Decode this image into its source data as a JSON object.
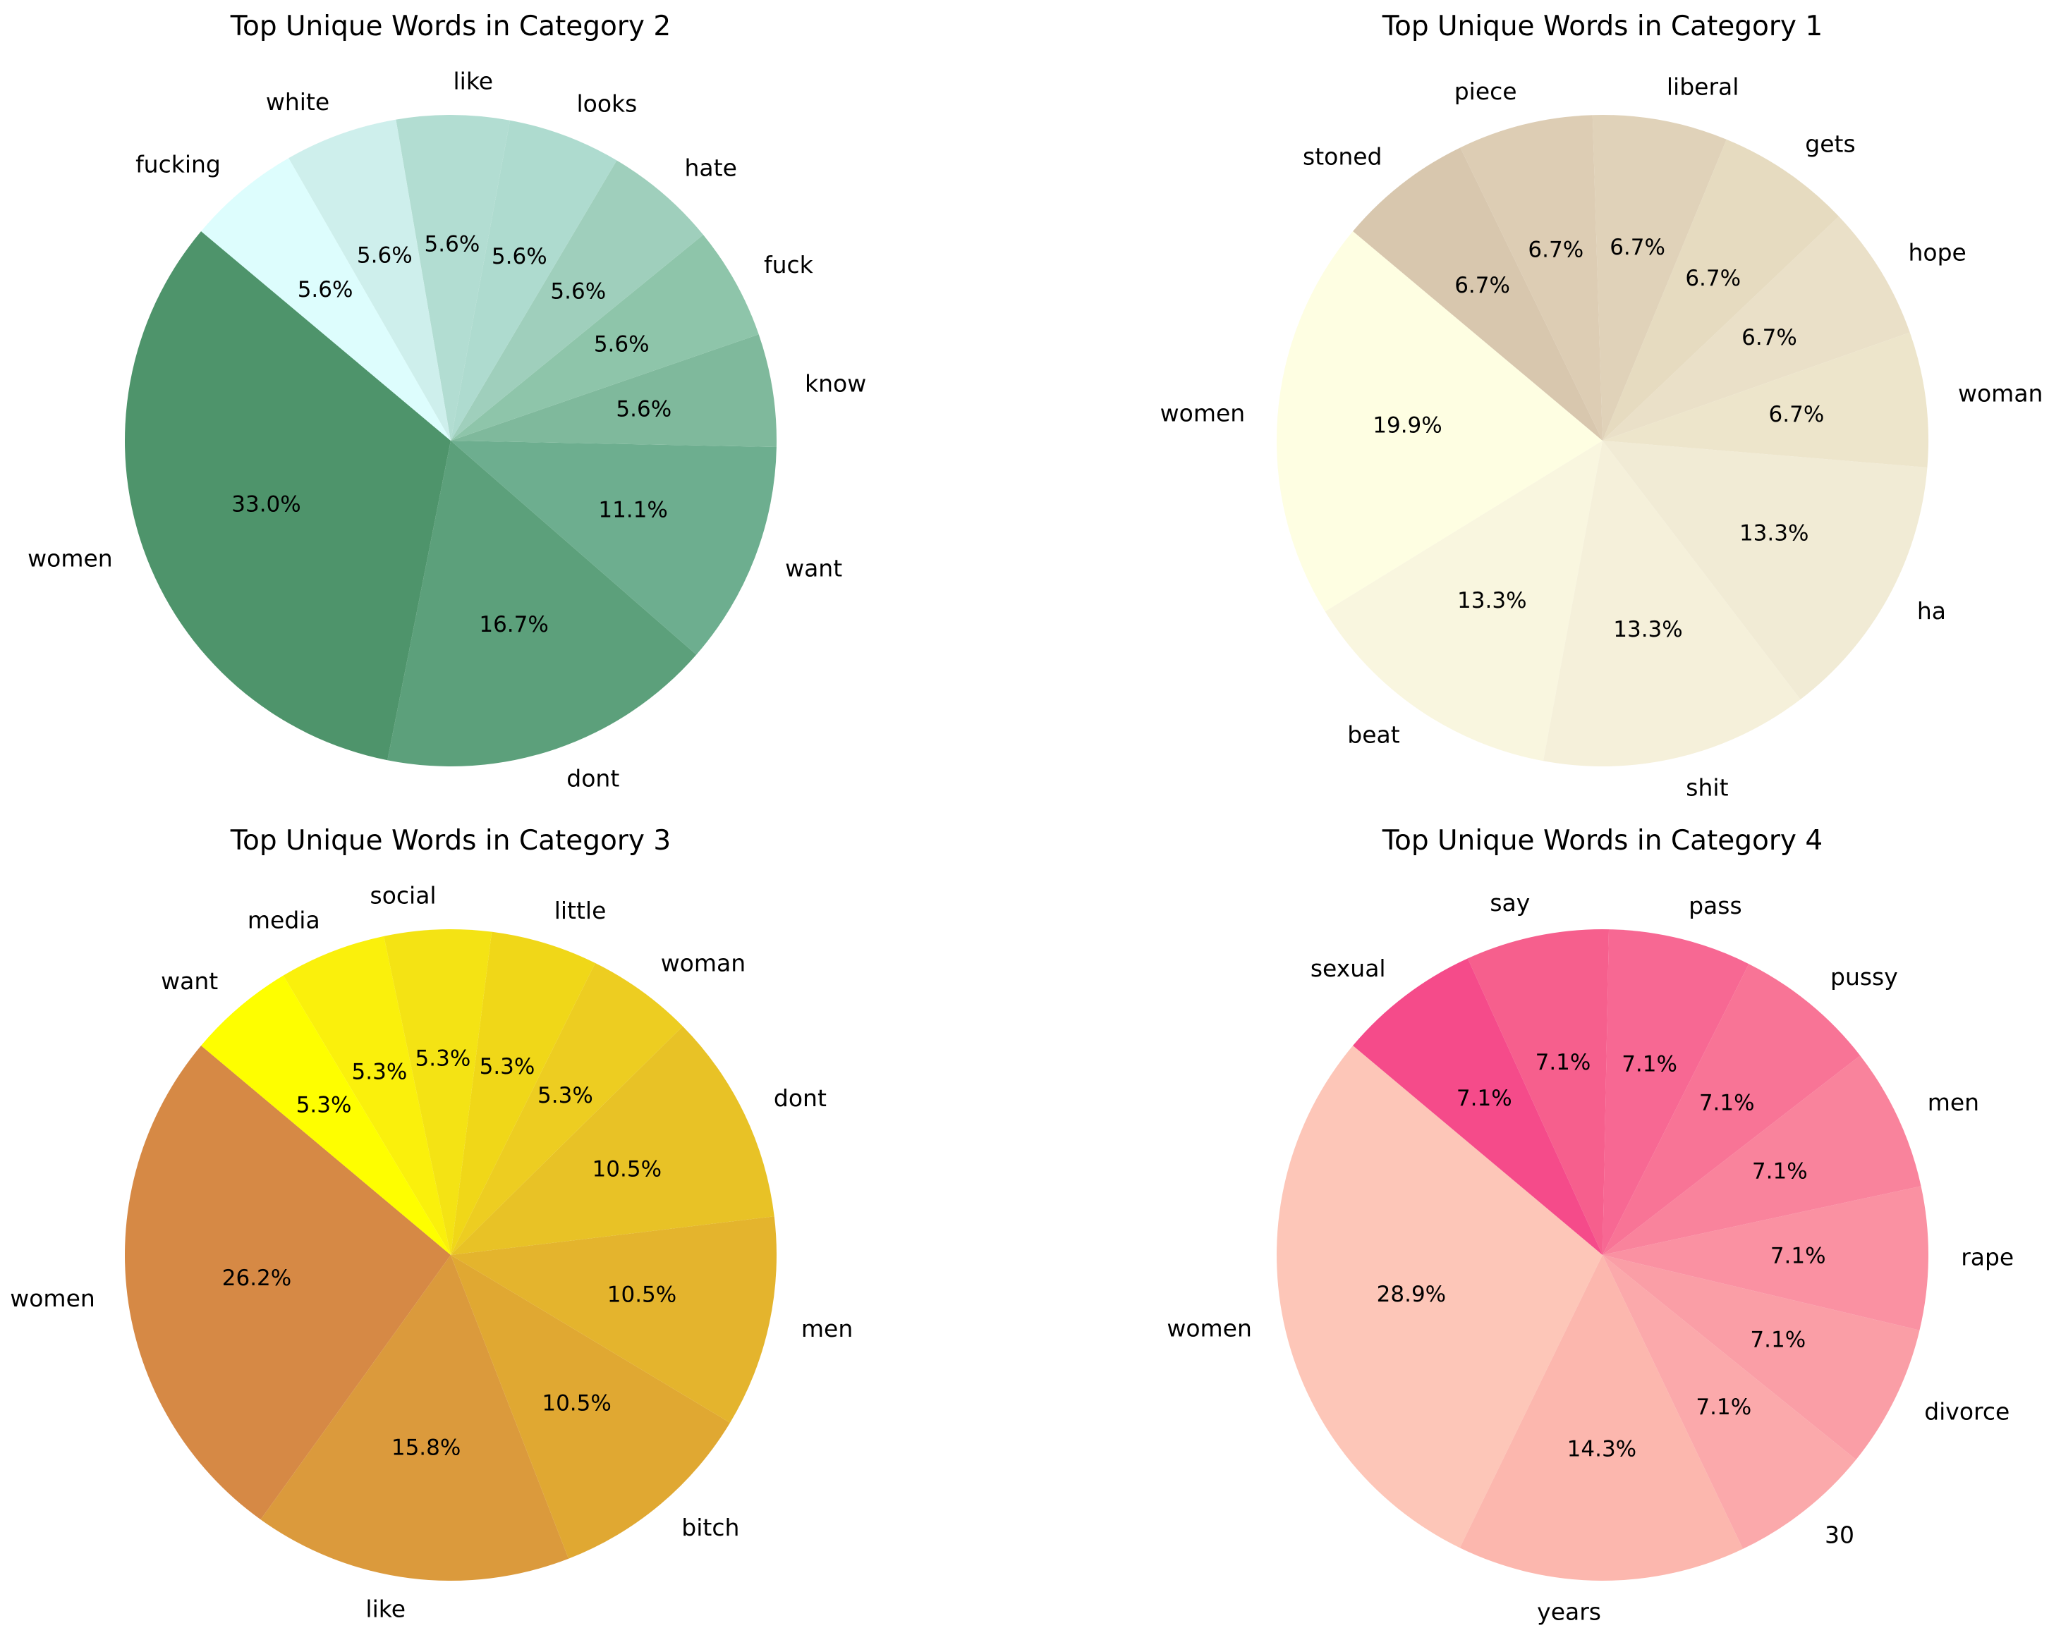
{
  "chart_data": [
    {
      "type": "pie",
      "title": "Top Unique Words in Category 2",
      "labels": [
        "women",
        "dont",
        "want",
        "know",
        "fuck",
        "hate",
        "looks",
        "like",
        "white",
        "fucking"
      ],
      "values": [
        33.0,
        16.7,
        11.1,
        5.6,
        5.6,
        5.6,
        5.6,
        5.6,
        5.6,
        5.6
      ],
      "percent_labels": [
        "33.0%",
        "16.7%",
        "11.1%",
        "5.6%",
        "5.6%",
        "5.6%",
        "5.6%",
        "5.6%",
        "5.6%",
        "5.6%"
      ],
      "colors": [
        "#4e946b",
        "#5ca07b",
        "#6dae8f",
        "#7fb99c",
        "#8ec5aa",
        "#9fcfbc",
        "#aedbcf",
        "#b2ddd2",
        "#ceefec",
        "#ddfdfd"
      ],
      "start_angle_deg": 140
    },
    {
      "type": "pie",
      "title": "Top Unique Words in Category 1",
      "labels": [
        "women",
        "beat",
        "shit",
        "ha",
        "woman",
        "hope",
        "gets",
        "liberal",
        "piece",
        "stoned"
      ],
      "values": [
        19.9,
        13.3,
        13.3,
        13.3,
        6.7,
        6.7,
        6.7,
        6.7,
        6.7,
        6.7
      ],
      "percent_labels": [
        "19.9%",
        "13.3%",
        "13.3%",
        "13.3%",
        "6.7%",
        "6.7%",
        "6.7%",
        "6.7%",
        "6.7%",
        "6.7%"
      ],
      "colors": [
        "#fefee2",
        "#f9f6df",
        "#f5f0da",
        "#f1ebd5",
        "#ede5cb",
        "#eae0c8",
        "#e6dbc0",
        "#e0d2b9",
        "#ddcdb4",
        "#d8c7ae"
      ],
      "start_angle_deg": 140
    },
    {
      "type": "pie",
      "title": "Top Unique Words in Category 3",
      "labels": [
        "women",
        "like",
        "bitch",
        "men",
        "dont",
        "woman",
        "little",
        "social",
        "media",
        "want"
      ],
      "values": [
        26.2,
        15.8,
        10.5,
        10.5,
        10.5,
        5.3,
        5.3,
        5.3,
        5.3,
        5.3
      ],
      "percent_labels": [
        "26.2%",
        "15.8%",
        "10.5%",
        "10.5%",
        "10.5%",
        "5.3%",
        "5.3%",
        "5.3%",
        "5.3%",
        "5.3%"
      ],
      "colors": [
        "#d68945",
        "#db9a3c",
        "#e0a832",
        "#e4b42d",
        "#e8c226",
        "#edcd21",
        "#f0d718",
        "#f4e314",
        "#faf00c",
        "#fefe00"
      ],
      "start_angle_deg": 140
    },
    {
      "type": "pie",
      "title": "Top Unique Words in Category 4",
      "labels": [
        "women",
        "years",
        "30",
        "divorce",
        "rape",
        "men",
        "pussy",
        "pass",
        "say",
        "sexual"
      ],
      "values": [
        28.9,
        14.3,
        7.1,
        7.1,
        7.1,
        7.1,
        7.1,
        7.1,
        7.1,
        7.1
      ],
      "percent_labels": [
        "28.9%",
        "14.3%",
        "7.1%",
        "7.1%",
        "7.1%",
        "7.1%",
        "7.1%",
        "7.1%",
        "7.1%",
        "7.1%"
      ],
      "colors": [
        "#fdc6b8",
        "#fcb7ae",
        "#fba9ab",
        "#fa9ea6",
        "#fa91a2",
        "#f9839c",
        "#f87496",
        "#f76893",
        "#f65f8d",
        "#f54b8a"
      ],
      "start_angle_deg": 140
    }
  ]
}
